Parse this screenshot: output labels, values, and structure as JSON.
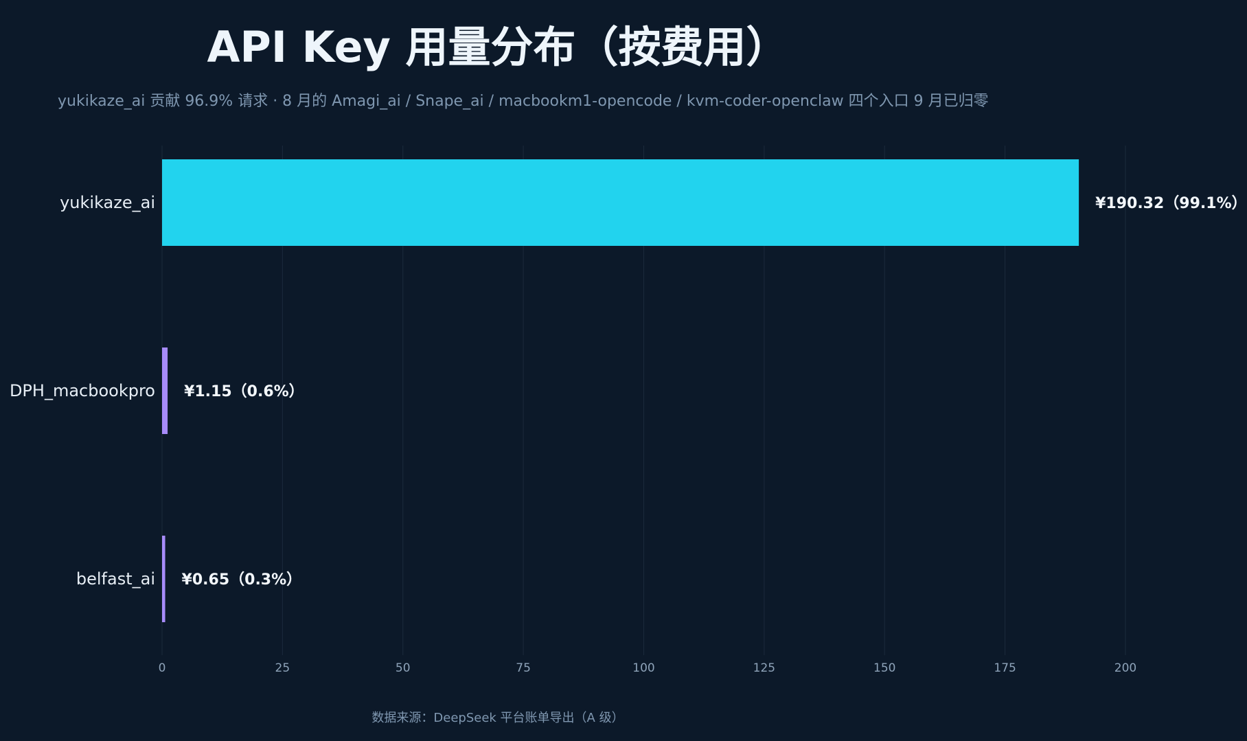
{
  "title": "API Key 用量分布（按费用）",
  "subtitle": "yukikaze_ai 贡献 96.9% 请求 · 8 月的 Amagi_ai / Snape_ai / macbookm1-opencode / kvm-coder-openclaw 四个入口 9 月已归零",
  "source": "数据来源：DeepSeek 平台账单导出（A 级）",
  "colors": {
    "background": "#0c1929",
    "primary_bar": "#22d3ee",
    "secondary_bar": "#a78bfa"
  },
  "chart_data": {
    "type": "bar",
    "orientation": "horizontal",
    "categories": [
      "yukikaze_ai",
      "DPH_macbookpro",
      "belfast_ai"
    ],
    "values": [
      190.32,
      1.15,
      0.65
    ],
    "data_labels": [
      "¥190.32（99.1%）",
      "¥1.15（0.6%）",
      "¥0.65（0.3%）"
    ],
    "bar_colors": [
      "#22d3ee",
      "#a78bfa",
      "#a78bfa"
    ],
    "xlim": [
      0,
      200
    ],
    "x_ticks": [
      0,
      25,
      50,
      75,
      100,
      125,
      150,
      175,
      200
    ],
    "grid": "vertical",
    "xlabel": "",
    "ylabel": ""
  }
}
